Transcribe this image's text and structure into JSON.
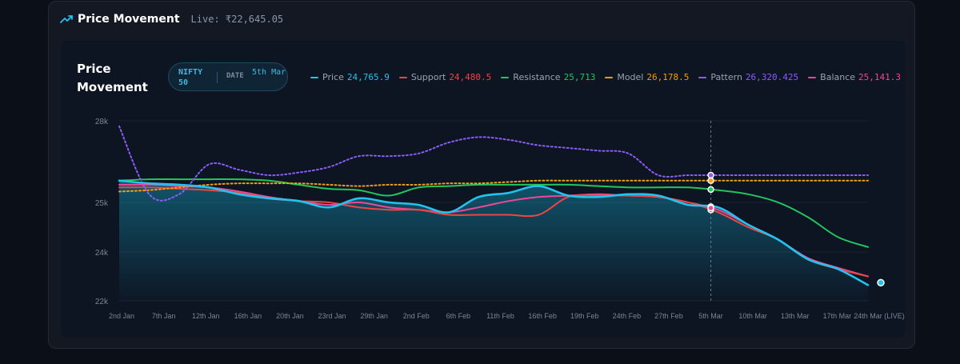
{
  "header": {
    "title": "Price Movement",
    "live_text": "Live: ₹22,645.05",
    "icon": "trend-up-icon"
  },
  "panel": {
    "title": "Price Movement",
    "pill": {
      "symbol": "NIFTY 50",
      "date_label": "DATE",
      "date_value": "5th Mar"
    }
  },
  "legend": [
    {
      "name": "Price",
      "value": "24,765.9",
      "color": "#22c3ee"
    },
    {
      "name": "Support",
      "value": "24,480.5",
      "color": "#ef4444"
    },
    {
      "name": "Resistance",
      "value": "25,713",
      "color": "#22c55e"
    },
    {
      "name": "Model",
      "value": "26,178.5",
      "color": "#f59e0b"
    },
    {
      "name": "Pattern",
      "value": "26,320.425",
      "color": "#8b5cf6"
    },
    {
      "name": "Balance",
      "value": "25,141.3",
      "color": "#ec4899"
    }
  ],
  "chart_data": {
    "type": "line",
    "x_labels": [
      "2nd Jan",
      "7th Jan",
      "12th Jan",
      "16th Jan",
      "20th Jan",
      "23rd Jan",
      "29th Jan",
      "2nd Feb",
      "6th Feb",
      "11th Feb",
      "16th Feb",
      "19th Feb",
      "24th Feb",
      "27th Feb",
      "5th Mar",
      "10th Mar",
      "13th Mar",
      "17th Mar",
      "24th Mar (LIVE)"
    ],
    "y_ticks": [
      "22k",
      "24k",
      "25k",
      "28k"
    ],
    "crosshair_label": "5th Mar",
    "series": [
      {
        "name": "Price",
        "color": "#22c3ee",
        "values": [
          25800,
          25700,
          25650,
          25550,
          25300,
          25150,
          25050,
          24900,
          25150,
          25000,
          24950,
          24800,
          25200,
          25350,
          25600,
          25250,
          25200,
          25300,
          25250,
          24950,
          24900,
          24550,
          24250,
          23700,
          23300,
          22645
        ]
      },
      {
        "name": "Support",
        "color": "#ef4444",
        "values": [
          25550,
          25550,
          25500,
          25450,
          25350,
          25150,
          25050,
          25000,
          24900,
          24850,
          24850,
          24750,
          24750,
          24750,
          24750,
          25200,
          25250,
          25250,
          25200,
          25000,
          24800,
          24500,
          24250,
          23700,
          23300,
          23000
        ]
      },
      {
        "name": "Resistance",
        "color": "#22c55e",
        "values": [
          25800,
          25850,
          25850,
          25850,
          25850,
          25800,
          25650,
          25500,
          25450,
          25250,
          25550,
          25600,
          25650,
          25650,
          25650,
          25650,
          25600,
          25550,
          25550,
          25550,
          25450,
          25300,
          25000,
          24700,
          24300,
          24100
        ]
      },
      {
        "name": "Model",
        "color": "#f59e0b",
        "values": [
          25400,
          25450,
          25550,
          25650,
          25700,
          25700,
          25700,
          25650,
          25600,
          25650,
          25650,
          25700,
          25700,
          25750,
          25800,
          25800,
          25800,
          25800,
          25800,
          25800,
          25800,
          25800,
          25800,
          25800,
          25800,
          25800
        ]
      },
      {
        "name": "Pattern",
        "color": "#8b5cf6",
        "values": [
          27800,
          25300,
          25300,
          26400,
          26200,
          26000,
          26100,
          26300,
          26700,
          26700,
          26800,
          27200,
          27400,
          27300,
          27100,
          27000,
          26900,
          26800,
          26000,
          26000,
          26000,
          26000,
          26000,
          26000,
          26000,
          26000
        ]
      },
      {
        "name": "Balance",
        "color": "#ec4899",
        "values": [
          25650,
          25650,
          25600,
          25550,
          25400,
          25200,
          25050,
          24950,
          25000,
          24900,
          24850,
          24800,
          24900,
          25050,
          25200,
          25250,
          25300,
          25250,
          25200,
          25000,
          24850,
          24550,
          24250,
          23750,
          23350,
          23000
        ]
      }
    ]
  }
}
